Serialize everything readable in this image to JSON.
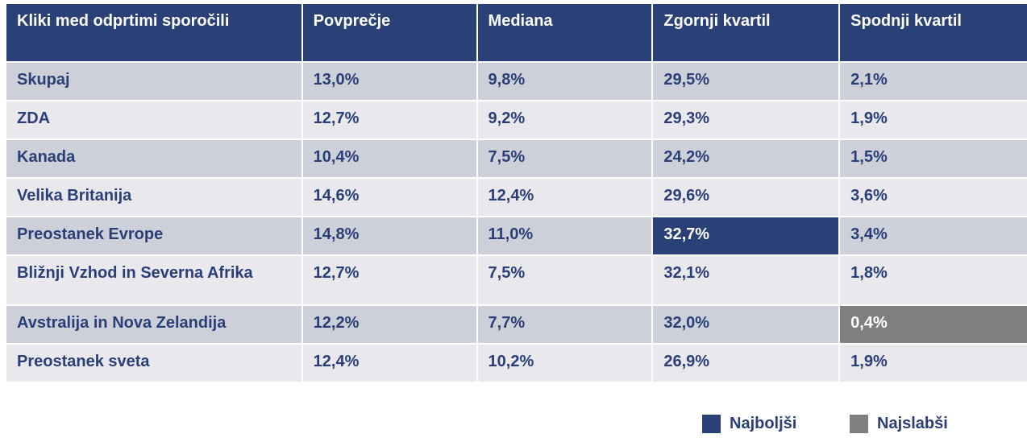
{
  "table": {
    "headers": [
      "Kliki med odprtimi sporočili",
      "Povprečje",
      "Mediana",
      "Zgornji kvartil",
      "Spodnji kvartil"
    ],
    "rows": [
      {
        "region": "Skupaj",
        "povprecje": "13,0%",
        "mediana": "9,8%",
        "zgornji": "29,5%",
        "spodnji": "2,1%"
      },
      {
        "region": "ZDA",
        "povprecje": "12,7%",
        "mediana": "9,2%",
        "zgornji": "29,3%",
        "spodnji": "1,9%"
      },
      {
        "region": "Kanada",
        "povprecje": "10,4%",
        "mediana": "7,5%",
        "zgornji": "24,2%",
        "spodnji": "1,5%"
      },
      {
        "region": "Velika Britanija",
        "povprecje": "14,6%",
        "mediana": "12,4%",
        "zgornji": "29,6%",
        "spodnji": "3,6%"
      },
      {
        "region": "Preostanek Evrope",
        "povprecje": "14,8%",
        "mediana": "11,0%",
        "zgornji": "32,7%",
        "spodnji": "3,4%"
      },
      {
        "region": "Bližnji Vzhod in Severna Afrika",
        "povprecje": "12,7%",
        "mediana": "7,5%",
        "zgornji": "32,1%",
        "spodnji": "1,8%"
      },
      {
        "region": "Avstralija in Nova Zelandija",
        "povprecje": "12,2%",
        "mediana": "7,7%",
        "zgornji": "32,0%",
        "spodnji": "0,4%"
      },
      {
        "region": "Preostanek sveta",
        "povprecje": "12,4%",
        "mediana": "10,2%",
        "zgornji": "26,9%",
        "spodnji": "1,9%"
      }
    ],
    "highlights": {
      "best": {
        "row": "Preostanek Evrope",
        "column": "Zgornji kvartil",
        "color": "#2a4177"
      },
      "worst": {
        "row": "Avstralija in Nova Zelandija",
        "column": "Spodnji kvartil",
        "color": "#7f7f80"
      }
    }
  },
  "legend": {
    "best_label": "Najboljši",
    "worst_label": "Najslabši"
  },
  "colors": {
    "header_bg": "#2a4177",
    "text": "#2a3f77",
    "row_odd": "#cdd0d9",
    "row_even": "#e8e8ed"
  }
}
